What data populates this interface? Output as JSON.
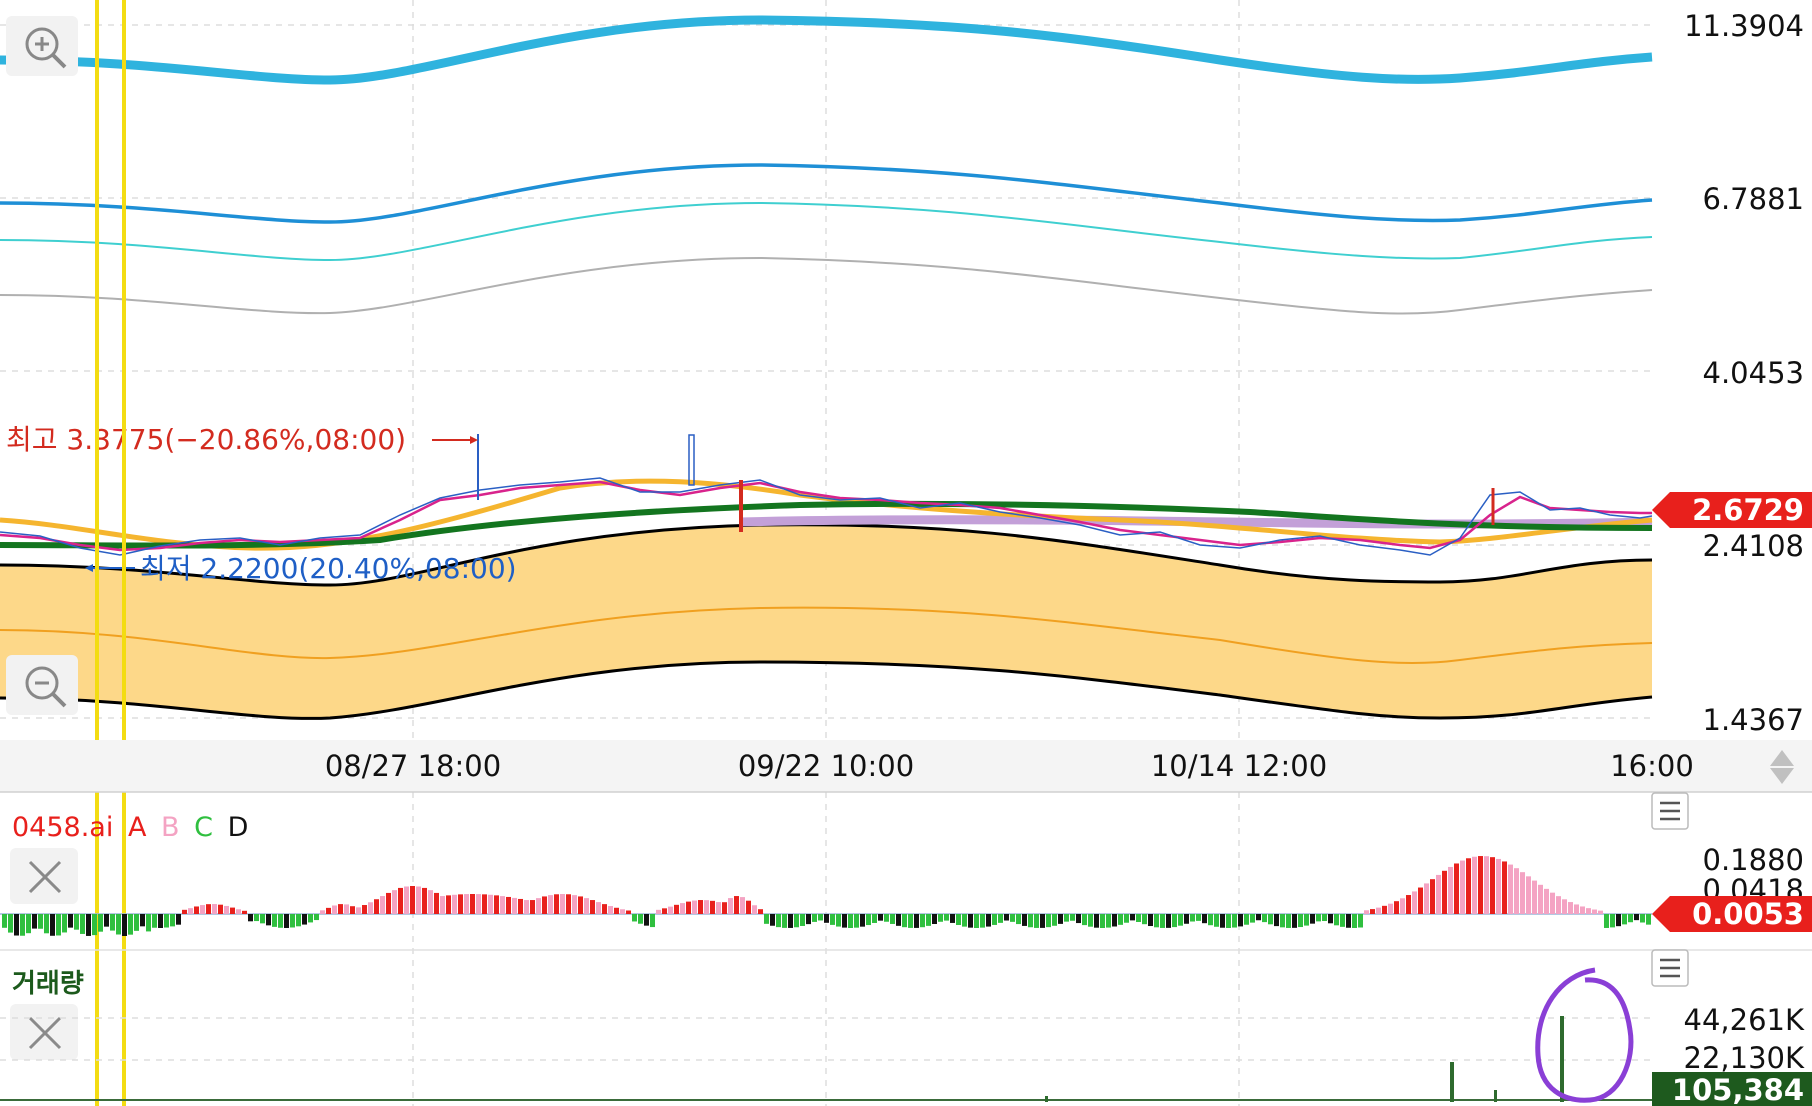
{
  "price_axis": {
    "labels": [
      "11.3904",
      "6.7881",
      "4.0453",
      "2.4108",
      "1.4367"
    ],
    "current_price": "2.6729",
    "current_color": "#e8201c"
  },
  "annotations": {
    "high": "최고 3.3775(−20.86%,08:00)",
    "low": "최저 2.2200(20.40%,08:00)"
  },
  "time_axis": {
    "labels": [
      "08/27 18:00",
      "09/22 10:00",
      "10/14 12:00",
      "16:00"
    ]
  },
  "indicator": {
    "name": "0458.ai",
    "series": [
      "A",
      "B",
      "C",
      "D"
    ],
    "series_colors": [
      "#e8201c",
      "#f4a3c3",
      "#2fbf3f",
      "#111111"
    ],
    "axis_labels": [
      "0.1880",
      "0.0418"
    ],
    "current_value": "0.0053"
  },
  "volume": {
    "title": "거래량",
    "axis_labels": [
      "44,261K",
      "22,130K"
    ],
    "current_value": "105,384"
  },
  "icons": [
    "zoom-in-icon",
    "zoom-out-icon",
    "close-icon",
    "menu-icon",
    "scroll-arrows-icon"
  ],
  "colors": {
    "outer_band": "#2fb3de",
    "mid_band": "#1e8fd6",
    "inner_band": "#3fcfd0",
    "grey_band": "#b0b0b0",
    "cloud_fill": "#fdd889",
    "ma_green": "#13751f",
    "ma_orange": "#f5b52f",
    "ma_purple": "#c3a0d8",
    "crosshair_yellow": "#f3dc12",
    "circle_annotation": "#8a3fd6"
  }
}
